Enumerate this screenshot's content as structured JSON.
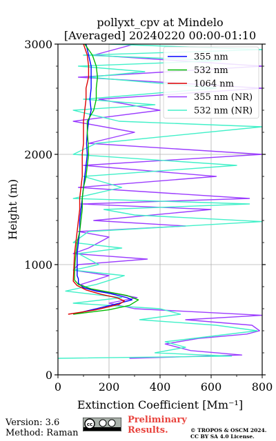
{
  "chart_data": {
    "type": "line",
    "title_line1": "pollyxt_cpv at Mindelo",
    "title_line2": "[Averaged] 20240220 00:00-01:10",
    "xlabel": "Extinction Coefficient [Mm⁻¹]",
    "ylabel": "Height (m)",
    "xlim": [
      0,
      800
    ],
    "ylim": [
      0,
      3000
    ],
    "xticks": [
      "0",
      "200",
      "400",
      "600",
      "800"
    ],
    "yticks": [
      "0",
      "1000",
      "2000",
      "3000"
    ],
    "grid": true,
    "legend_position": "top-right",
    "series": [
      {
        "name": "355 nm",
        "color": "#0000ff",
        "points": [
          [
            60,
            550
          ],
          [
            150,
            600
          ],
          [
            240,
            650
          ],
          [
            290,
            680
          ],
          [
            270,
            700
          ],
          [
            200,
            740
          ],
          [
            150,
            760
          ],
          [
            100,
            790
          ],
          [
            80,
            830
          ],
          [
            80,
            870
          ],
          [
            75,
            900
          ],
          [
            75,
            1000
          ],
          [
            75,
            1100
          ],
          [
            80,
            1200
          ],
          [
            85,
            1300
          ],
          [
            85,
            1400
          ],
          [
            90,
            1500
          ],
          [
            95,
            1600
          ],
          [
            100,
            1700
          ],
          [
            105,
            1800
          ],
          [
            110,
            1900
          ],
          [
            115,
            2000
          ],
          [
            112,
            2100
          ],
          [
            115,
            2200
          ],
          [
            120,
            2300
          ],
          [
            130,
            2400
          ],
          [
            125,
            2500
          ],
          [
            130,
            2600
          ],
          [
            130,
            2700
          ],
          [
            130,
            2800
          ],
          [
            120,
            2900
          ],
          [
            110,
            3000
          ]
        ]
      },
      {
        "name": "532 nm",
        "color": "#00bb00",
        "points": [
          [
            60,
            550
          ],
          [
            200,
            590
          ],
          [
            280,
            630
          ],
          [
            315,
            680
          ],
          [
            270,
            720
          ],
          [
            200,
            750
          ],
          [
            130,
            780
          ],
          [
            80,
            820
          ],
          [
            65,
            860
          ],
          [
            65,
            950
          ],
          [
            70,
            1100
          ],
          [
            75,
            1200
          ],
          [
            85,
            1300
          ],
          [
            90,
            1400
          ],
          [
            95,
            1500
          ],
          [
            95,
            1600
          ],
          [
            100,
            1700
          ],
          [
            110,
            1800
          ],
          [
            115,
            1900
          ],
          [
            120,
            2000
          ],
          [
            118,
            2100
          ],
          [
            115,
            2200
          ],
          [
            115,
            2300
          ],
          [
            140,
            2400
          ],
          [
            150,
            2500
          ],
          [
            150,
            2600
          ],
          [
            155,
            2700
          ],
          [
            150,
            2800
          ],
          [
            135,
            2900
          ],
          [
            105,
            3000
          ]
        ]
      },
      {
        "name": "1064 nm",
        "color": "#dd0000",
        "points": [
          [
            40,
            550
          ],
          [
            150,
            590
          ],
          [
            240,
            640
          ],
          [
            260,
            670
          ],
          [
            230,
            700
          ],
          [
            170,
            730
          ],
          [
            110,
            770
          ],
          [
            75,
            810
          ],
          [
            60,
            850
          ],
          [
            62,
            950
          ],
          [
            65,
            1100
          ],
          [
            70,
            1200
          ],
          [
            75,
            1300
          ],
          [
            80,
            1400
          ],
          [
            85,
            1500
          ],
          [
            85,
            1600
          ],
          [
            90,
            1700
          ],
          [
            95,
            1800
          ],
          [
            95,
            1900
          ],
          [
            95,
            2000
          ],
          [
            100,
            2100
          ],
          [
            100,
            2200
          ],
          [
            100,
            2300
          ],
          [
            105,
            2400
          ],
          [
            110,
            2500
          ],
          [
            110,
            2600
          ],
          [
            120,
            2700
          ],
          [
            120,
            2800
          ],
          [
            115,
            2900
          ],
          [
            100,
            3000
          ]
        ]
      },
      {
        "name": "355 nm (NR)",
        "color": "#9b3cff",
        "points": [
          [
            280,
            150
          ],
          [
            720,
            180
          ],
          [
            520,
            220
          ],
          [
            420,
            280
          ],
          [
            550,
            330
          ],
          [
            740,
            370
          ],
          [
            790,
            400
          ],
          [
            760,
            450
          ],
          [
            500,
            500
          ],
          [
            800,
            540
          ],
          [
            300,
            600
          ],
          [
            200,
            650
          ],
          [
            310,
            700
          ],
          [
            120,
            780
          ],
          [
            90,
            820
          ],
          [
            200,
            900
          ],
          [
            60,
            950
          ],
          [
            80,
            1000
          ],
          [
            350,
            1050
          ],
          [
            60,
            1100
          ],
          [
            120,
            1150
          ],
          [
            200,
            1250
          ],
          [
            80,
            1300
          ],
          [
            500,
            1350
          ],
          [
            140,
            1400
          ],
          [
            600,
            1500
          ],
          [
            90,
            1550
          ],
          [
            750,
            1600
          ],
          [
            80,
            1700
          ],
          [
            620,
            1800
          ],
          [
            100,
            1900
          ],
          [
            800,
            2000
          ],
          [
            120,
            2100
          ],
          [
            300,
            2200
          ],
          [
            60,
            2300
          ],
          [
            400,
            2400
          ],
          [
            160,
            2500
          ],
          [
            800,
            2600
          ],
          [
            80,
            2700
          ],
          [
            800,
            2800
          ],
          [
            140,
            2900
          ],
          [
            300,
            3000
          ]
        ]
      },
      {
        "name": "532 nm (NR)",
        "color": "#40f0c8",
        "points": [
          [
            0,
            150
          ],
          [
            680,
            170
          ],
          [
            380,
            200
          ],
          [
            500,
            250
          ],
          [
            420,
            300
          ],
          [
            780,
            400
          ],
          [
            620,
            450
          ],
          [
            320,
            500
          ],
          [
            480,
            550
          ],
          [
            400,
            600
          ],
          [
            60,
            650
          ],
          [
            250,
            700
          ],
          [
            30,
            760
          ],
          [
            150,
            820
          ],
          [
            260,
            900
          ],
          [
            60,
            950
          ],
          [
            160,
            1000
          ],
          [
            80,
            1100
          ],
          [
            250,
            1150
          ],
          [
            60,
            1200
          ],
          [
            120,
            1300
          ],
          [
            800,
            1390
          ],
          [
            300,
            1450
          ],
          [
            180,
            1500
          ],
          [
            750,
            1550
          ],
          [
            60,
            1600
          ],
          [
            250,
            1700
          ],
          [
            100,
            1800
          ],
          [
            700,
            1900
          ],
          [
            60,
            2000
          ],
          [
            150,
            2100
          ],
          [
            800,
            2250
          ],
          [
            240,
            2300
          ],
          [
            60,
            2400
          ],
          [
            380,
            2450
          ],
          [
            100,
            2500
          ],
          [
            620,
            2600
          ],
          [
            120,
            2700
          ],
          [
            340,
            2750
          ],
          [
            80,
            2800
          ],
          [
            640,
            2850
          ],
          [
            100,
            2900
          ],
          [
            800,
            2950
          ],
          [
            200,
            3000
          ]
        ]
      }
    ]
  },
  "footer": {
    "version": "Version: 3.6",
    "method": "Method: Raman",
    "preliminary_line1": "Preliminary",
    "preliminary_line2": "Results.",
    "copyright_line1": "© TROPOS & OSCM 2024.",
    "copyright_line2": "CC BY SA 4.0 License."
  },
  "badge": {
    "label": "cc-by-sa-badge"
  }
}
